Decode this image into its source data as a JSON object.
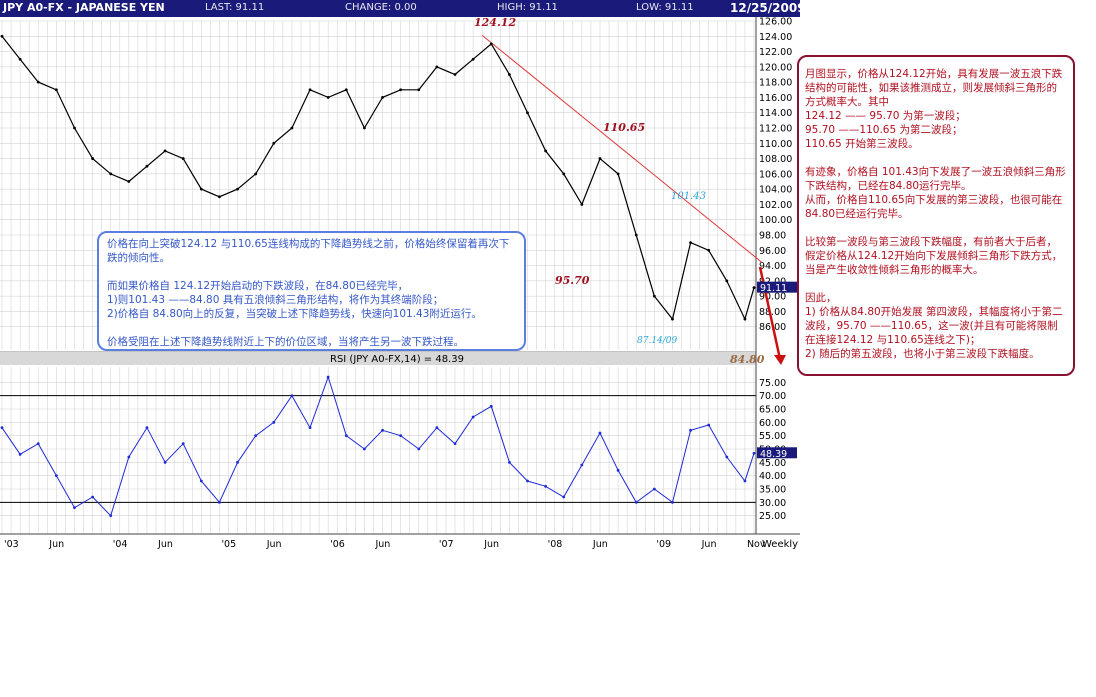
{
  "header": {
    "title": "JPY A0-FX - JAPANESE YEN",
    "last": "LAST: 91.11",
    "change": "CHANGE: 0.00",
    "high": "HIGH: 91.11",
    "low": "LOW: 91.11",
    "date": "12/25/2009"
  },
  "colors": {
    "header_bg": "#1a1a7a",
    "price_line": "#000000",
    "rsi_line": "#1f2bd6",
    "trend_line": "#e03a3a",
    "annotation_red": "#a01020",
    "annotation_cyan": "#2aa8d8",
    "note_blue": "#3558c8",
    "note_red": "#b01020"
  },
  "annotations": {
    "p124": "124.12",
    "p110": "110.65",
    "p9570": "95.70",
    "p10143": "101.43",
    "p8714": "87.14/09",
    "p8480": "84.80"
  },
  "price_marker": "91.11",
  "rsi_marker": "48.39",
  "rsi_label": "RSI (JPY A0-FX,14) = 48.39",
  "notes": {
    "left": [
      "价格在向上突破124.12 与110.65连线构成的下降趋势线之前，价格始终保留着再次下跌的倾向性。",
      "而如果价格自 124.12开始启动的下跌波段，在84.80已经完毕，\n1)则101.43 ——84.80 具有五浪倾斜三角形结构，将作为其终端阶段；\n2)价格自 84.80向上的反复，当突破上述下降趋势线，快速向101.43附近运行。",
      "价格受阻在上述下降趋势线附近上下的价位区域，当将产生另一波下跌过程。"
    ],
    "right": [
      "月图显示，价格从124.12开始，具有发展一波五浪下跌结构的可能性，如果该推测成立，则发展倾斜三角形的方式概率大。其中\n124.12 —— 95.70 为第一波段；\n95.70 ——110.65 为第二波段；\n110.65 开始第三波段。",
      "有迹象，价格自 101.43向下发展了一波五浪倾斜三角形下跌结构，已经在84.80运行完毕。\n从而，价格自110.65向下发展的第三波段，也很可能在84.80已经运行完毕。",
      "比较第一波段与第三波段下跌幅度，有前者大于后者，假定价格从124.12开始向下发展倾斜三角形下跌方式，当是产生收敛性倾斜三角形的概率大。",
      "因此，\n1) 价格从84.80开始发展 第四波段，其幅度将小于第二波段，95.70 ——110.65，这一波(并且有可能将限制在连接124.12 与110.65连线之下)；\n2) 随后的第五波段，也将小于第三波段下跌幅度。"
    ]
  },
  "chart_data": [
    {
      "type": "line",
      "title": "JPY A0-FX - JAPANESE YEN",
      "x": [
        "2003-01",
        "2003-03",
        "2003-05",
        "2003-07",
        "2003-09",
        "2003-11",
        "2004-01",
        "2004-03",
        "2004-05",
        "2004-07",
        "2004-09",
        "2004-11",
        "2005-01",
        "2005-03",
        "2005-05",
        "2005-07",
        "2005-09",
        "2005-11",
        "2006-01",
        "2006-03",
        "2006-05",
        "2006-07",
        "2006-09",
        "2006-11",
        "2007-01",
        "2007-03",
        "2007-05",
        "2007-07",
        "2007-09",
        "2007-11",
        "2008-01",
        "2008-03",
        "2008-05",
        "2008-07",
        "2008-09",
        "2008-11",
        "2009-01",
        "2009-03",
        "2009-05",
        "2009-07",
        "2009-09",
        "2009-11",
        "2009-12"
      ],
      "y": [
        124,
        121,
        118,
        117,
        112,
        108,
        106,
        105,
        107,
        109,
        108,
        104,
        103,
        104,
        106,
        110,
        112,
        117,
        116,
        117,
        112,
        116,
        117,
        117,
        120,
        119,
        121,
        123,
        119,
        114,
        109,
        106,
        102,
        108,
        106,
        98,
        90,
        87,
        97,
        96,
        92,
        87,
        91.11
      ],
      "ylim": [
        84,
        126
      ],
      "yticks": [
        "126.00",
        "124.00",
        "122.00",
        "120.00",
        "118.00",
        "116.00",
        "114.00",
        "112.00",
        "110.00",
        "108.00",
        "106.00",
        "104.00",
        "102.00",
        "100.00",
        "98.00",
        "96.00",
        "94.00",
        "92.00",
        "90.00",
        "88.00",
        "86.00"
      ],
      "trendline": [
        [
          124.12,
          "2007-06"
        ],
        [
          110.65,
          "2008-08"
        ]
      ],
      "last": 91.11
    },
    {
      "type": "line",
      "title": "RSI (JPY A0-FX,14) = 48.39",
      "x": [
        "2003-01",
        "2003-03",
        "2003-05",
        "2003-07",
        "2003-09",
        "2003-11",
        "2004-01",
        "2004-03",
        "2004-05",
        "2004-07",
        "2004-09",
        "2004-11",
        "2005-01",
        "2005-03",
        "2005-05",
        "2005-07",
        "2005-09",
        "2005-11",
        "2006-01",
        "2006-03",
        "2006-05",
        "2006-07",
        "2006-09",
        "2006-11",
        "2007-01",
        "2007-03",
        "2007-05",
        "2007-07",
        "2007-09",
        "2007-11",
        "2008-01",
        "2008-03",
        "2008-05",
        "2008-07",
        "2008-09",
        "2008-11",
        "2009-01",
        "2009-03",
        "2009-05",
        "2009-07",
        "2009-09",
        "2009-11",
        "2009-12"
      ],
      "y": [
        58,
        48,
        52,
        40,
        28,
        32,
        25,
        47,
        58,
        45,
        52,
        38,
        30,
        45,
        55,
        60,
        70,
        58,
        77,
        55,
        50,
        57,
        55,
        50,
        58,
        52,
        62,
        66,
        45,
        38,
        36,
        32,
        44,
        56,
        42,
        30,
        35,
        30,
        57,
        59,
        47,
        38,
        48.39
      ],
      "ylim": [
        20,
        80
      ],
      "yticks": [
        "75.00",
        "70.00",
        "65.00",
        "60.00",
        "55.00",
        "50.00",
        "45.00",
        "40.00",
        "35.00",
        "30.00",
        "25.00"
      ],
      "reference_lines": [
        70,
        30
      ],
      "last": 48.39
    }
  ],
  "xaxis": {
    "ticks": [
      {
        "label": "'03",
        "x": "2003-01"
      },
      {
        "label": "Jun",
        "x": "2003-06"
      },
      {
        "label": "'04",
        "x": "2004-01"
      },
      {
        "label": "Jun",
        "x": "2004-06"
      },
      {
        "label": "'05",
        "x": "2005-01"
      },
      {
        "label": "Jun",
        "x": "2005-06"
      },
      {
        "label": "'06",
        "x": "2006-01"
      },
      {
        "label": "Jun",
        "x": "2006-06"
      },
      {
        "label": "'07",
        "x": "2007-01"
      },
      {
        "label": "Jun",
        "x": "2007-06"
      },
      {
        "label": "'08",
        "x": "2008-01"
      },
      {
        "label": "Jun",
        "x": "2008-06"
      },
      {
        "label": "'09",
        "x": "2009-01"
      },
      {
        "label": "Jun",
        "x": "2009-06"
      },
      {
        "label": "Nov",
        "x": "2009-11"
      }
    ],
    "period": "Weekly"
  }
}
